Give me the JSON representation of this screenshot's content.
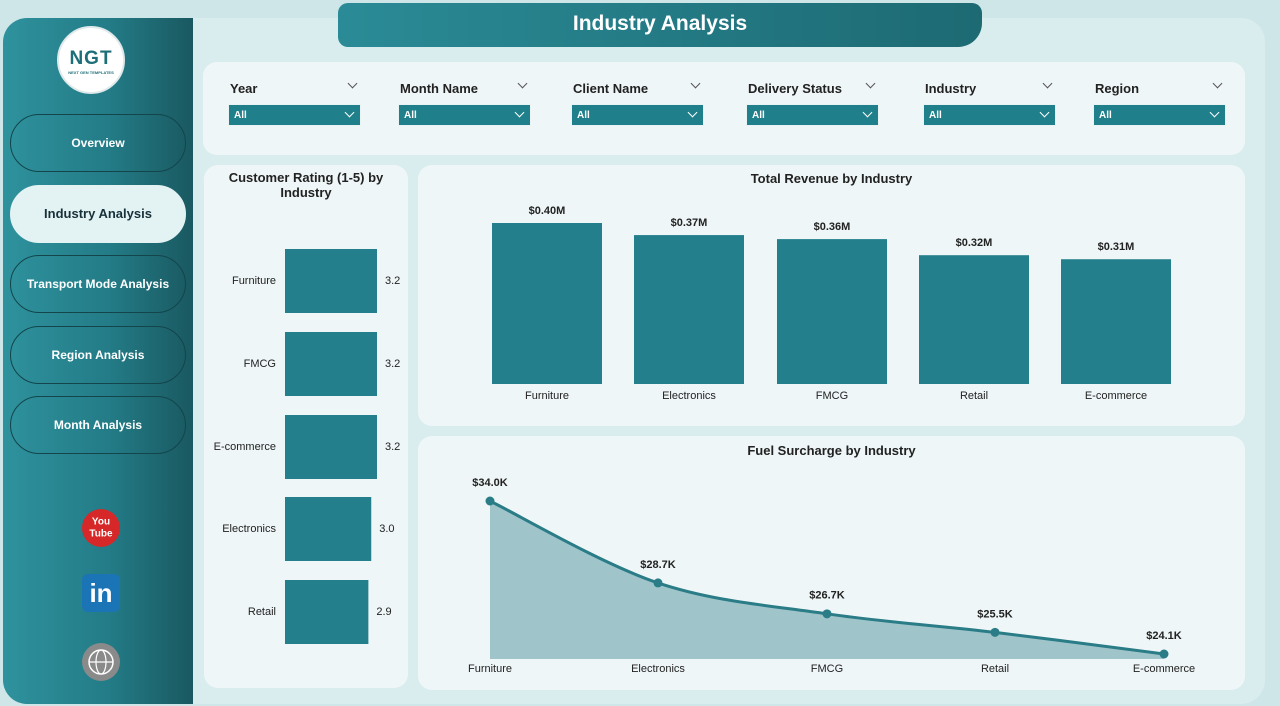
{
  "header": {
    "title": "Industry Analysis"
  },
  "logo": {
    "text": "NGT",
    "subtitle": "NEXT GEN TEMPLATES"
  },
  "nav": [
    {
      "label": "Overview",
      "active": false
    },
    {
      "label": "Industry Analysis",
      "active": true
    },
    {
      "label": "Transport Mode Analysis",
      "active": false
    },
    {
      "label": "Region Analysis",
      "active": false
    },
    {
      "label": "Month Analysis",
      "active": false
    }
  ],
  "filters": [
    {
      "label": "Year",
      "value": "All"
    },
    {
      "label": "Month Name",
      "value": "All"
    },
    {
      "label": "Client Name",
      "value": "All"
    },
    {
      "label": "Delivery Status",
      "value": "All"
    },
    {
      "label": "Industry",
      "value": "All"
    },
    {
      "label": "Region",
      "value": "All"
    }
  ],
  "social": {
    "youtube": [
      "You",
      "Tube"
    ],
    "linkedin": "in"
  },
  "chart_data": [
    {
      "type": "hbar",
      "title": "Customer Rating (1-5) by Industry",
      "categories": [
        "Furniture",
        "FMCG",
        "E-commerce",
        "Electronics",
        "Retail"
      ],
      "values": [
        3.2,
        3.2,
        3.2,
        3.0,
        2.9
      ],
      "value_labels": [
        "3.2",
        "3.2",
        "3.2",
        "3.0",
        "2.9"
      ],
      "color": "#237f8c"
    },
    {
      "type": "bar",
      "title": "Total Revenue by Industry",
      "categories": [
        "Furniture",
        "Electronics",
        "FMCG",
        "Retail",
        "E-commerce"
      ],
      "values": [
        0.4,
        0.37,
        0.36,
        0.32,
        0.31
      ],
      "value_labels": [
        "$0.40M",
        "$0.37M",
        "$0.36M",
        "$0.32M",
        "$0.31M"
      ],
      "color": "#237f8c"
    },
    {
      "type": "area",
      "title": "Fuel Surcharge by Industry",
      "categories": [
        "Furniture",
        "Electronics",
        "FMCG",
        "Retail",
        "E-commerce"
      ],
      "values": [
        34.0,
        28.7,
        26.7,
        25.5,
        24.1
      ],
      "value_labels": [
        "$34.0K",
        "$28.7K",
        "$26.7K",
        "$25.5K",
        "$24.1K"
      ],
      "color": "#2a7c87",
      "fill": "#9fc5ca"
    }
  ]
}
